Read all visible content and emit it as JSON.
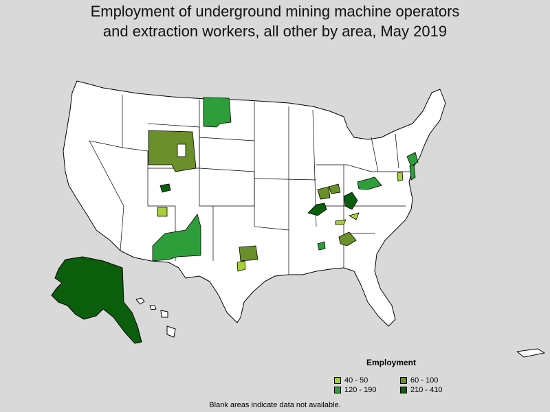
{
  "title": {
    "line1": "Employment of underground mining machine operators",
    "line2": "and extraction workers, all other by area, May 2019"
  },
  "legend": {
    "title": "Employment",
    "items": [
      {
        "label": "40 - 50",
        "color": "#a6cf3a"
      },
      {
        "label": "60 - 100",
        "color": "#6b8f2a"
      },
      {
        "label": "120 - 190",
        "color": "#2e9e3a"
      },
      {
        "label": "210 - 410",
        "color": "#0b5e0b"
      }
    ]
  },
  "footnote": "Blank areas indicate data not available.",
  "colors": {
    "background": "#d9d9d9",
    "no_data": "#ffffff",
    "border": "#000000"
  }
}
